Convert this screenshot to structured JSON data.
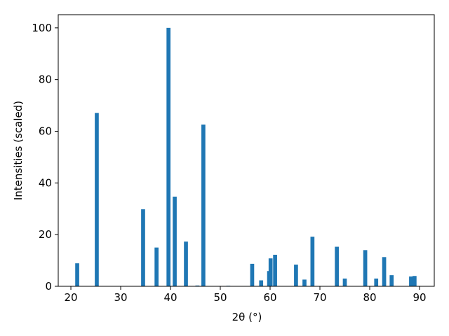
{
  "chart_data": {
    "type": "bar",
    "xlabel": "2θ (°)",
    "ylabel": "Intensities (scaled)",
    "x": [
      21.27,
      25.2,
      34.5,
      37.2,
      39.6,
      40.85,
      43.1,
      45.4,
      46.6,
      51.6,
      56.4,
      58.2,
      59.8,
      60.1,
      61.0,
      65.2,
      66.9,
      68.5,
      73.4,
      75.0,
      79.1,
      81.3,
      82.9,
      84.4,
      88.3,
      89.0
    ],
    "values": [
      8.9,
      67.1,
      29.8,
      15.0,
      100,
      34.7,
      17.3,
      0.3,
      62.6,
      0.2,
      8.7,
      2.3,
      5.9,
      10.8,
      12.2,
      8.4,
      2.6,
      19.2,
      15.3,
      3.0,
      14.0,
      3.0,
      11.3,
      4.3,
      3.8,
      4.0
    ],
    "bar_width": 0.8,
    "color": "#1f77b4",
    "xlim": [
      17.46,
      92.96
    ],
    "ylim": [
      0,
      105.1
    ],
    "xticks": [
      20,
      30,
      40,
      50,
      60,
      70,
      80,
      90
    ],
    "yticks": [
      0,
      20,
      40,
      60,
      80,
      100
    ]
  }
}
